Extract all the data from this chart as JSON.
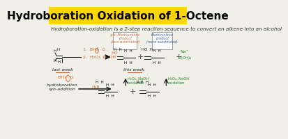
{
  "title": "Hydroboration Oxidation of 1-Octene",
  "title_color": "#000000",
  "title_bg": "#FFD700",
  "title_fontsize": 11,
  "subtitle": "Hydroboration-oxidation is a 2-step reaction sequence to convert an alkene into an alcohol",
  "subtitle_fontsize": 5.2,
  "bg_color": "#F0F0E8",
  "anti_markov_color": "#CC6633",
  "markov_color": "#336699",
  "reagent_color": "#CC6633",
  "oxidation_color": "#228B22",
  "underline_color": "#CC6633",
  "byproduct_color": "#228B22",
  "black": "#111111",
  "gray": "#444444"
}
